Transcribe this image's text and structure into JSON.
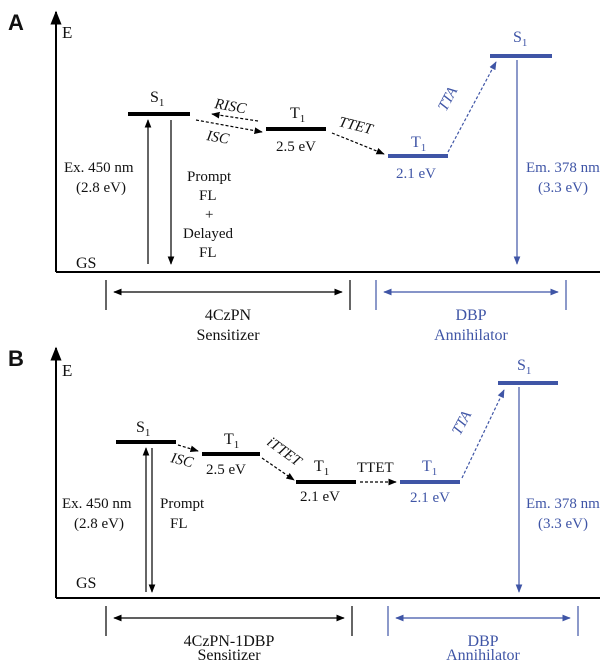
{
  "panel_a": {
    "letter": "A",
    "axis_label": "E",
    "ground_label": "GS",
    "sens_s1": "S",
    "sens_t1": "T",
    "sens_t1_energy": "2.5 eV",
    "risc": "RISC",
    "isc": "ISC",
    "ttet": "TTET",
    "ann_t1": "T",
    "ann_t1_energy": "2.1 eV",
    "ann_s1": "S",
    "tta": "TTA",
    "excitation": "Ex. 450 nm",
    "excitation_energy": "(2.8 eV)",
    "emission_lines": [
      "Prompt",
      "FL",
      "+",
      "Delayed",
      "FL"
    ],
    "em_label": "Em. 378 nm",
    "em_energy": "(3.3 eV)",
    "sensitizer_name": "4CzPN",
    "sensitizer_role": "Sensitizer",
    "annihilator_name": "DBP",
    "annihilator_role": "Annihilator",
    "subscript": "1"
  },
  "panel_b": {
    "letter": "B",
    "axis_label": "E",
    "ground_label": "GS",
    "sens_s1": "S",
    "isc": "ISC",
    "sens_t1_a": "T",
    "sens_t1_a_energy": "2.5 eV",
    "ittet": "iTTET",
    "sens_t1_b": "T",
    "sens_t1_b_energy": "2.1 eV",
    "ttet": "TTET",
    "ann_t1": "T",
    "ann_t1_energy": "2.1 eV",
    "ann_s1": "S",
    "tta": "TTA",
    "excitation": "Ex. 450 nm",
    "excitation_energy": "(2.8 eV)",
    "emission_lines": [
      "Prompt",
      "FL"
    ],
    "em_label": "Em. 378 nm",
    "em_energy": "(3.3 eV)",
    "sensitizer_name": "4CzPN-1DBP",
    "sensitizer_role": "Sensitizer",
    "annihilator_name": "DBP",
    "annihilator_role": "Annihilator",
    "subscript": "1"
  },
  "colors": {
    "sensitizer": "#000000",
    "annihilator": "#3f55a6"
  }
}
